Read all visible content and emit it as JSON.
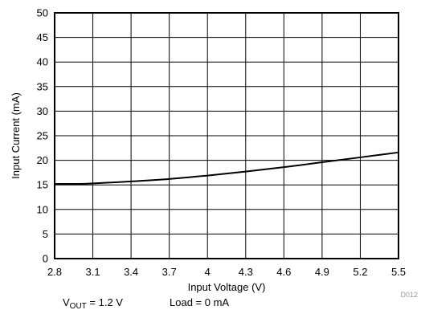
{
  "chart_data": {
    "type": "line",
    "title": "",
    "xlabel": "Input Voltage (V)",
    "ylabel": "Input Current (mA)",
    "xlim": [
      2.8,
      5.5
    ],
    "ylim": [
      0,
      50
    ],
    "x_ticks": [
      "2.8",
      "3.1",
      "3.4",
      "3.7",
      "4",
      "4.3",
      "4.6",
      "4.9",
      "5.2",
      "5.5"
    ],
    "y_ticks": [
      "0",
      "5",
      "10",
      "15",
      "20",
      "25",
      "30",
      "35",
      "40",
      "45",
      "50"
    ],
    "grid": true,
    "series": [
      {
        "x": [
          2.8,
          3.0,
          3.1,
          3.4,
          3.7,
          4.0,
          4.3,
          4.6,
          4.9,
          5.2,
          5.5
        ],
        "y": [
          15.2,
          15.2,
          15.3,
          15.7,
          16.2,
          16.9,
          17.7,
          18.6,
          19.6,
          20.6,
          21.6
        ]
      }
    ],
    "figure_code": "D012",
    "conditions": {
      "vout_prefix": "V",
      "vout_sub": "OUT",
      "vout_value": " = 1.2 V",
      "load": "Load = 0 mA"
    },
    "colors": {
      "line": "#000000",
      "grid": "#000000",
      "code": "#9a9a9a"
    }
  }
}
